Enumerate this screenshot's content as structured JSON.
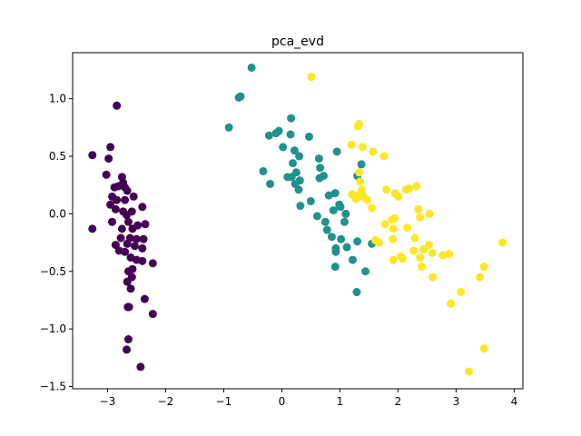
{
  "chart_data": {
    "type": "scatter",
    "title": "pca_evd",
    "xlabel": "",
    "ylabel": "",
    "xlim": [
      -3.6,
      4.15
    ],
    "ylim": [
      -1.52,
      1.4
    ],
    "xticks": [
      -3,
      -2,
      -1,
      0,
      1,
      2,
      3,
      4
    ],
    "xtick_labels": [
      "−3",
      "−2",
      "−1",
      "0",
      "1",
      "2",
      "3",
      "4"
    ],
    "yticks": [
      -1.5,
      -1.0,
      -0.5,
      0.0,
      0.5,
      1.0
    ],
    "ytick_labels": [
      "−1.5",
      "−1.0",
      "−0.5",
      "0.0",
      "0.5",
      "1.0"
    ],
    "grid": false,
    "legend": "none",
    "series": [
      {
        "color": "#440154",
        "points": [
          [
            -2.84,
            0.94
          ],
          [
            -2.95,
            0.58
          ],
          [
            -2.98,
            0.48
          ],
          [
            -3.26,
            0.51
          ],
          [
            -3.02,
            0.34
          ],
          [
            -2.75,
            0.32
          ],
          [
            -2.73,
            0.27
          ],
          [
            -2.88,
            0.23
          ],
          [
            -2.81,
            0.24
          ],
          [
            -2.7,
            0.23
          ],
          [
            -2.66,
            0.2
          ],
          [
            -2.55,
            0.15
          ],
          [
            -2.7,
            0.12
          ],
          [
            -2.92,
            0.15
          ],
          [
            -2.84,
            0.12
          ],
          [
            -2.95,
            0.08
          ],
          [
            -2.86,
            0.04
          ],
          [
            -2.73,
            0.02
          ],
          [
            -2.58,
            0.02
          ],
          [
            -2.4,
            0.06
          ],
          [
            -2.67,
            -0.01
          ],
          [
            -2.64,
            -0.07
          ],
          [
            -2.48,
            -0.1
          ],
          [
            -2.35,
            -0.09
          ],
          [
            -2.92,
            -0.07
          ],
          [
            -2.75,
            -0.13
          ],
          [
            -2.57,
            -0.13
          ],
          [
            -2.77,
            -0.21
          ],
          [
            -2.5,
            -0.22
          ],
          [
            -2.38,
            -0.22
          ],
          [
            -2.61,
            -0.21
          ],
          [
            -2.86,
            -0.27
          ],
          [
            -2.66,
            -0.26
          ],
          [
            -2.53,
            -0.28
          ],
          [
            -2.4,
            -0.3
          ],
          [
            -2.8,
            -0.32
          ],
          [
            -2.7,
            -0.33
          ],
          [
            -3.26,
            -0.13
          ],
          [
            -2.6,
            -0.38
          ],
          [
            -2.5,
            -0.4
          ],
          [
            -2.4,
            -0.41
          ],
          [
            -2.22,
            -0.43
          ],
          [
            -2.57,
            -0.48
          ],
          [
            -2.64,
            -0.5
          ],
          [
            -2.58,
            -0.55
          ],
          [
            -2.66,
            -0.59
          ],
          [
            -2.6,
            -0.65
          ],
          [
            -2.36,
            -0.74
          ],
          [
            -2.65,
            -0.81
          ],
          [
            -2.63,
            -0.81
          ],
          [
            -2.22,
            -0.87
          ],
          [
            -2.64,
            -1.09
          ],
          [
            -2.67,
            -1.18
          ],
          [
            -2.43,
            -1.33
          ]
        ]
      },
      {
        "color": "#21918c",
        "points": [
          [
            -0.52,
            1.27
          ],
          [
            -0.74,
            1.01
          ],
          [
            -0.71,
            1.02
          ],
          [
            -0.91,
            0.75
          ],
          [
            0.16,
            0.83
          ],
          [
            -0.22,
            0.68
          ],
          [
            -0.1,
            0.7
          ],
          [
            -0.05,
            0.72
          ],
          [
            0.15,
            0.69
          ],
          [
            0.47,
            0.67
          ],
          [
            0.02,
            0.58
          ],
          [
            0.22,
            0.55
          ],
          [
            0.3,
            0.5
          ],
          [
            0.64,
            0.48
          ],
          [
            0.66,
            0.4
          ],
          [
            0.19,
            0.44
          ],
          [
            0.25,
            0.36
          ],
          [
            0.17,
            0.32
          ],
          [
            0.1,
            0.32
          ],
          [
            0.23,
            0.26
          ],
          [
            0.31,
            0.29
          ],
          [
            0.29,
            0.21
          ],
          [
            0.5,
            0.11
          ],
          [
            0.32,
            0.07
          ],
          [
            -0.32,
            0.37
          ],
          [
            -0.2,
            0.26
          ],
          [
            0.72,
            0.33
          ],
          [
            0.65,
            0.31
          ],
          [
            0.81,
            0.16
          ],
          [
            0.92,
            0.18
          ],
          [
            0.95,
            0.54
          ],
          [
            0.99,
            0.08
          ],
          [
            1.01,
            0.06
          ],
          [
            0.89,
            0.03
          ],
          [
            1.3,
            0.33
          ],
          [
            1.37,
            0.43
          ],
          [
            1.1,
            0.0
          ],
          [
            0.61,
            -0.02
          ],
          [
            0.75,
            -0.07
          ],
          [
            1.08,
            -0.07
          ],
          [
            0.78,
            -0.14
          ],
          [
            0.86,
            -0.2
          ],
          [
            0.93,
            -0.3
          ],
          [
            0.93,
            -0.33
          ],
          [
            1.02,
            -0.22
          ],
          [
            1.12,
            -0.29
          ],
          [
            1.3,
            -0.24
          ],
          [
            1.55,
            -0.26
          ],
          [
            1.22,
            -0.4
          ],
          [
            1.44,
            -0.5
          ],
          [
            0.92,
            -0.46
          ],
          [
            1.29,
            -0.68
          ]
        ]
      },
      {
        "color": "#fde725",
        "points": [
          [
            0.51,
            1.19
          ],
          [
            1.31,
            0.76
          ],
          [
            1.33,
            0.78
          ],
          [
            1.2,
            0.6
          ],
          [
            1.39,
            0.58
          ],
          [
            1.57,
            0.54
          ],
          [
            1.76,
            0.5
          ],
          [
            1.33,
            0.36
          ],
          [
            1.21,
            0.17
          ],
          [
            1.28,
            0.13
          ],
          [
            1.34,
            0.17
          ],
          [
            1.4,
            0.15
          ],
          [
            1.38,
            0.21
          ],
          [
            1.47,
            0.12
          ],
          [
            1.35,
            0.28
          ],
          [
            1.8,
            0.21
          ],
          [
            1.95,
            0.18
          ],
          [
            2.14,
            0.21
          ],
          [
            2.19,
            0.22
          ],
          [
            2.32,
            0.24
          ],
          [
            2.01,
            0.15
          ],
          [
            1.55,
            0.05
          ],
          [
            2.35,
            0.04
          ],
          [
            2.54,
            0.0
          ],
          [
            2.38,
            -0.03
          ],
          [
            1.9,
            -0.05
          ],
          [
            1.94,
            -0.04
          ],
          [
            1.78,
            -0.09
          ],
          [
            1.92,
            -0.13
          ],
          [
            2.16,
            -0.12
          ],
          [
            2.29,
            -0.21
          ],
          [
            1.91,
            -0.22
          ],
          [
            1.61,
            -0.23
          ],
          [
            1.67,
            -0.25
          ],
          [
            2.53,
            -0.27
          ],
          [
            2.44,
            -0.31
          ],
          [
            2.27,
            -0.32
          ],
          [
            2.38,
            -0.38
          ],
          [
            2.05,
            -0.37
          ],
          [
            2.59,
            -0.34
          ],
          [
            2.77,
            -0.36
          ],
          [
            2.88,
            -0.35
          ],
          [
            1.92,
            -0.4
          ],
          [
            2.08,
            -0.39
          ],
          [
            2.41,
            -0.46
          ],
          [
            2.6,
            -0.55
          ],
          [
            3.48,
            -0.46
          ],
          [
            3.8,
            -0.25
          ],
          [
            3.41,
            -0.55
          ],
          [
            3.08,
            -0.68
          ],
          [
            2.91,
            -0.78
          ],
          [
            3.48,
            -1.17
          ],
          [
            3.22,
            -1.37
          ]
        ]
      }
    ]
  }
}
